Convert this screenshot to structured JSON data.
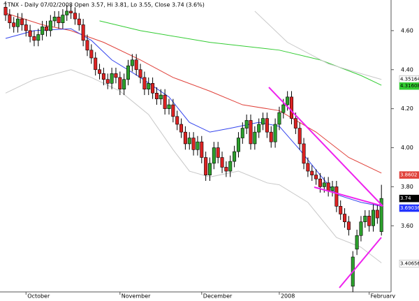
{
  "chart_data": {
    "type": "candlestick",
    "title": "^TNX - Daily 07/02/2008 Open 3.57, Hi 3.81, Lo 3.55, Close 3.74 (3.6%)",
    "categories": [
      null,
      null,
      null,
      null,
      null,
      "October",
      null,
      null,
      null,
      null,
      null,
      null,
      null,
      null,
      null,
      null,
      null,
      null,
      null,
      null,
      null,
      null,
      null,
      null,
      null,
      null,
      null,
      null,
      "November",
      null,
      null,
      null,
      null,
      null,
      null,
      null,
      null,
      null,
      null,
      null,
      null,
      null,
      null,
      null,
      null,
      null,
      null,
      null,
      "December",
      null,
      null,
      null,
      null,
      null,
      null,
      null,
      null,
      null,
      null,
      null,
      null,
      null,
      null,
      null,
      null,
      null,
      null,
      "2008",
      null,
      null,
      null,
      null,
      null,
      null,
      null,
      null,
      null,
      null,
      null,
      null,
      null,
      null,
      null,
      null,
      null,
      null,
      null,
      null,
      null,
      "February",
      null,
      null,
      null
    ],
    "open": [
      4.72,
      4.68,
      4.64,
      4.62,
      4.66,
      4.63,
      4.6,
      4.57,
      4.55,
      4.58,
      4.62,
      4.6,
      4.65,
      4.67,
      4.64,
      4.68,
      4.7,
      4.69,
      4.66,
      4.63,
      4.55,
      4.5,
      4.46,
      4.4,
      4.38,
      4.35,
      4.33,
      4.38,
      4.36,
      4.3,
      4.35,
      4.42,
      4.45,
      4.4,
      4.36,
      4.3,
      4.33,
      4.28,
      4.25,
      4.27,
      4.2,
      4.22,
      4.16,
      4.12,
      4.08,
      4.02,
      4.05,
      3.99,
      4.03,
      3.95,
      3.86,
      3.92,
      4.0,
      3.95,
      3.9,
      3.88,
      3.93,
      3.98,
      4.05,
      4.1,
      4.14,
      4.02,
      4.08,
      4.12,
      4.15,
      4.08,
      4.03,
      4.12,
      4.18,
      4.22,
      4.26,
      4.15,
      4.1,
      4.02,
      3.92,
      3.88,
      3.86,
      3.84,
      3.8,
      3.82,
      3.78,
      3.8,
      3.7,
      3.66,
      3.62,
      3.29,
      3.48,
      3.55,
      3.62,
      3.65,
      3.6,
      3.68,
      3.57
    ],
    "high": [
      4.75,
      4.71,
      4.67,
      4.69,
      4.69,
      4.66,
      4.63,
      4.6,
      4.61,
      4.65,
      4.65,
      4.68,
      4.7,
      4.7,
      4.71,
      4.73,
      4.73,
      4.72,
      4.69,
      4.66,
      4.58,
      4.53,
      4.49,
      4.43,
      4.41,
      4.38,
      4.41,
      4.41,
      4.39,
      4.38,
      4.45,
      4.48,
      4.48,
      4.43,
      4.39,
      4.36,
      4.36,
      4.31,
      4.3,
      4.3,
      4.25,
      4.25,
      4.19,
      4.15,
      4.11,
      4.08,
      4.08,
      4.06,
      4.06,
      3.98,
      3.95,
      4.03,
      4.03,
      3.98,
      3.93,
      3.96,
      4.01,
      4.08,
      4.13,
      4.17,
      4.17,
      4.11,
      4.15,
      4.18,
      4.18,
      4.11,
      4.15,
      4.21,
      4.25,
      4.29,
      4.29,
      4.18,
      4.13,
      4.05,
      3.95,
      3.91,
      3.89,
      3.87,
      3.85,
      3.85,
      3.83,
      3.83,
      3.73,
      3.69,
      3.65,
      3.47,
      3.58,
      3.65,
      3.68,
      3.68,
      3.71,
      3.71,
      3.81
    ],
    "low": [
      4.65,
      4.61,
      4.59,
      4.59,
      4.6,
      4.57,
      4.54,
      4.52,
      4.52,
      4.55,
      4.57,
      4.57,
      4.62,
      4.61,
      4.61,
      4.65,
      4.66,
      4.63,
      4.6,
      4.52,
      4.47,
      4.43,
      4.37,
      4.35,
      4.32,
      4.3,
      4.3,
      4.33,
      4.27,
      4.27,
      4.32,
      4.39,
      4.37,
      4.33,
      4.27,
      4.27,
      4.25,
      4.22,
      4.22,
      4.17,
      4.17,
      4.13,
      4.09,
      4.05,
      3.99,
      3.99,
      3.96,
      3.96,
      3.92,
      3.83,
      3.83,
      3.89,
      3.92,
      3.87,
      3.85,
      3.85,
      3.9,
      3.95,
      4.02,
      4.07,
      3.99,
      3.99,
      4.05,
      4.09,
      4.05,
      4.0,
      4.0,
      4.09,
      4.15,
      4.19,
      4.12,
      4.07,
      3.99,
      3.89,
      3.85,
      3.83,
      3.81,
      3.77,
      3.77,
      3.75,
      3.75,
      3.67,
      3.63,
      3.59,
      3.55,
      3.26,
      3.45,
      3.52,
      3.59,
      3.57,
      3.57,
      3.61,
      3.55
    ],
    "close": [
      4.68,
      4.64,
      4.62,
      4.66,
      4.63,
      4.6,
      4.57,
      4.55,
      4.58,
      4.62,
      4.6,
      4.65,
      4.67,
      4.64,
      4.68,
      4.7,
      4.69,
      4.66,
      4.63,
      4.55,
      4.5,
      4.46,
      4.4,
      4.38,
      4.35,
      4.33,
      4.38,
      4.36,
      4.3,
      4.35,
      4.42,
      4.45,
      4.4,
      4.36,
      4.3,
      4.33,
      4.28,
      4.25,
      4.27,
      4.2,
      4.22,
      4.16,
      4.12,
      4.08,
      4.02,
      4.05,
      3.99,
      4.03,
      3.95,
      3.86,
      3.92,
      4.0,
      3.95,
      3.9,
      3.88,
      3.93,
      3.98,
      4.05,
      4.1,
      4.14,
      4.02,
      4.08,
      4.12,
      4.15,
      4.08,
      4.03,
      4.12,
      4.18,
      4.22,
      4.26,
      4.15,
      4.1,
      4.02,
      3.92,
      3.88,
      3.86,
      3.84,
      3.8,
      3.82,
      3.78,
      3.8,
      3.7,
      3.66,
      3.62,
      3.58,
      3.44,
      3.55,
      3.62,
      3.65,
      3.6,
      3.68,
      3.64,
      3.74
    ],
    "up_color": "#2ca02c",
    "down_color": "#dd2222",
    "overlays": [
      {
        "color": "#33cc33",
        "x": [
          23,
          33,
          50,
          67,
          77,
          87,
          92
        ],
        "values": [
          4.65,
          4.6,
          4.54,
          4.5,
          4.45,
          4.37,
          4.32
        ]
      },
      {
        "color": "#e0413a",
        "x": [
          0,
          9,
          16,
          24,
          33,
          41,
          50,
          58,
          67,
          76,
          84,
          92
        ],
        "values": [
          4.69,
          4.63,
          4.6,
          4.54,
          4.45,
          4.36,
          4.29,
          4.22,
          4.19,
          4.08,
          3.95,
          3.87
        ]
      },
      {
        "color": "#3344ee",
        "x": [
          0,
          7,
          16,
          21,
          26,
          33,
          40,
          45,
          50,
          55,
          62,
          67,
          72,
          77,
          81,
          87,
          92
        ],
        "values": [
          4.56,
          4.6,
          4.61,
          4.55,
          4.45,
          4.36,
          4.26,
          4.13,
          4.08,
          4.1,
          4.13,
          4.11,
          3.99,
          3.86,
          3.76,
          3.72,
          3.7
        ]
      },
      {
        "color": "#c8c8c8",
        "x": [
          0,
          7,
          16,
          21,
          28,
          35,
          41,
          45,
          50,
          57,
          64,
          67,
          74,
          81,
          87,
          92
        ],
        "values": [
          4.28,
          4.35,
          4.4,
          4.36,
          4.29,
          4.17,
          3.99,
          3.88,
          3.85,
          3.88,
          3.82,
          3.81,
          3.72,
          3.54,
          3.49,
          3.41
        ]
      },
      {
        "color": "#c8c8c8",
        "x": [
          61,
          69,
          79,
          87,
          92
        ],
        "values": [
          4.7,
          4.54,
          4.43,
          4.38,
          4.35
        ]
      }
    ],
    "price_labels": [
      {
        "value": 4.35164,
        "color": "#ffffff"
      },
      {
        "value": 4.31608,
        "color": "#33cc33"
      },
      {
        "value": 3.8602,
        "color": "#e0413a"
      },
      {
        "value": 3.74,
        "color": "#000000"
      },
      {
        "value": 3.69036,
        "color": "#2233ff"
      },
      {
        "value": 3.40656,
        "color": "#ffffff"
      }
    ],
    "ylim": [
      3.261,
      4.757
    ],
    "yticks": [
      {
        "value": 3.6,
        "label": "3.60"
      },
      {
        "value": 3.8,
        "label": "3.80"
      },
      {
        "value": 4.0,
        "label": "4.00"
      },
      {
        "value": 4.2,
        "label": "4.20"
      },
      {
        "value": 4.4,
        "label": "4.40"
      },
      {
        "value": 4.6,
        "label": "4.60"
      }
    ]
  }
}
